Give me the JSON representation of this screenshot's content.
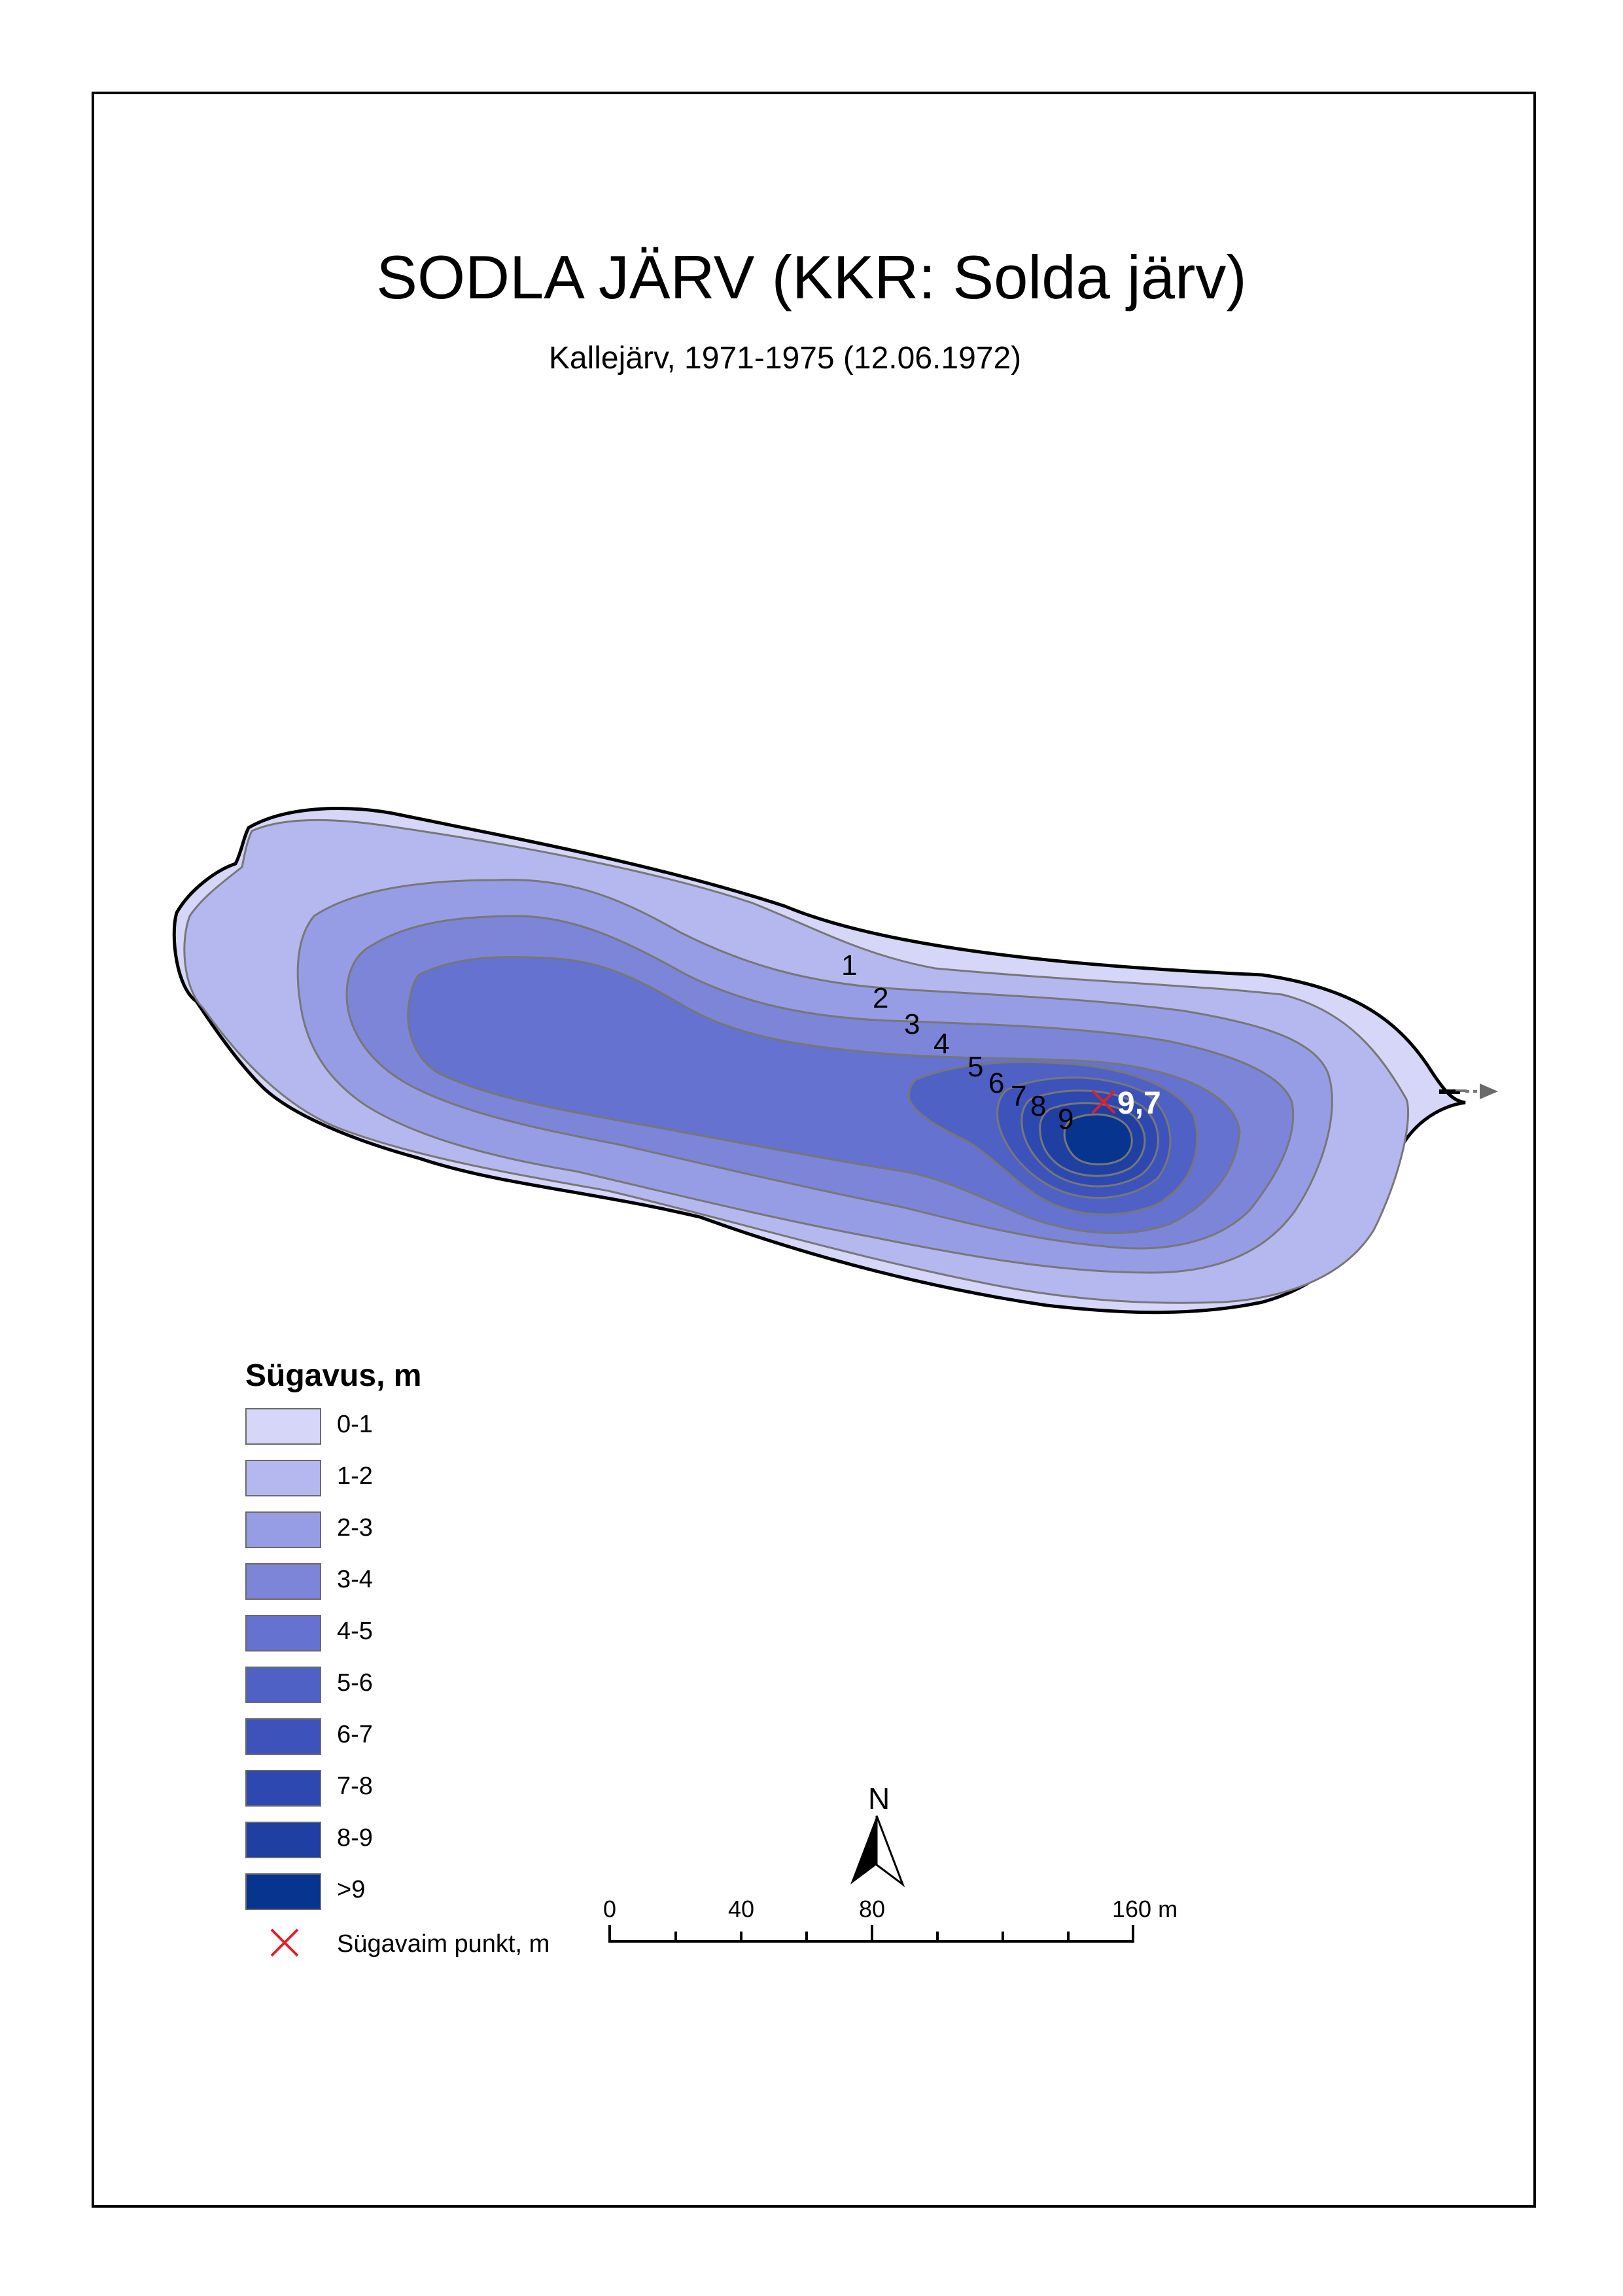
{
  "map": {
    "title": "SODLA JÄRV (KKR: Solda järv)",
    "subtitle": "Kallejärv, 1971-1975 (12.06.1972)",
    "contour_labels": [
      "1",
      "2",
      "3",
      "4",
      "5",
      "6",
      "7",
      "8",
      "9"
    ],
    "deepest_value": "9,7",
    "deepest_marker_color": "#e0202a"
  },
  "legend": {
    "title": "Sügavus, m",
    "classes": [
      {
        "label": "0-1",
        "color": "#d5d6f8"
      },
      {
        "label": "1-2",
        "color": "#b5b8ef"
      },
      {
        "label": "2-3",
        "color": "#979de4"
      },
      {
        "label": "3-4",
        "color": "#7c85d8"
      },
      {
        "label": "4-5",
        "color": "#6572cf"
      },
      {
        "label": "5-6",
        "color": "#4f61c5"
      },
      {
        "label": "6-7",
        "color": "#3d53bb"
      },
      {
        "label": "7-8",
        "color": "#2d48b0"
      },
      {
        "label": "8-9",
        "color": "#1f3fa3"
      },
      {
        "label": ">9",
        "color": "#07348f"
      }
    ],
    "deepest_point_label": "Sügavaim punkt, m"
  },
  "north_arrow": {
    "label": "N"
  },
  "scale_bar": {
    "ticks": [
      "0",
      "40",
      "80",
      "160 m"
    ]
  }
}
